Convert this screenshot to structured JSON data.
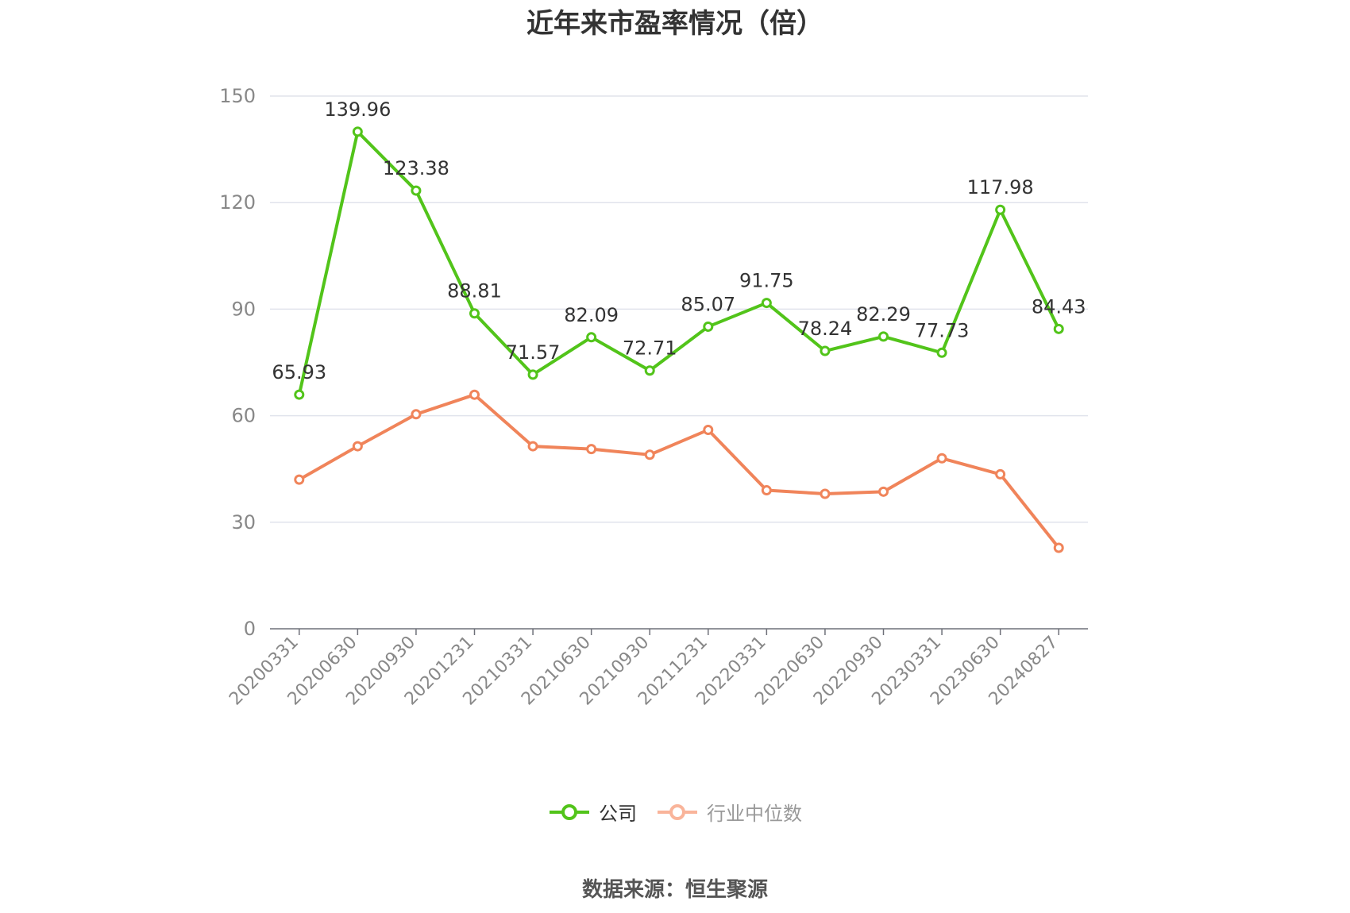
{
  "title": "近年来市盈率情况（倍）",
  "source": "数据来源：恒生聚源",
  "legend": [
    {
      "label": "公司",
      "color": "#52c41a"
    },
    {
      "label": "行业中位数",
      "color": "#fa8c5a"
    }
  ],
  "chart_data": {
    "type": "line",
    "title": "近年来市盈率情况（倍）",
    "xlabel": "",
    "ylabel": "",
    "ylim": [
      0,
      150
    ],
    "yticks": [
      0,
      30,
      60,
      90,
      120,
      150
    ],
    "grid": true,
    "legend_position": "bottom",
    "categories": [
      "20200331",
      "20200630",
      "20200930",
      "20201231",
      "20210331",
      "20210630",
      "20210930",
      "20211231",
      "20220331",
      "20220630",
      "20220930",
      "20230331",
      "20230630",
      "20240827"
    ],
    "series": [
      {
        "name": "公司",
        "color": "#52c41a",
        "show_labels": true,
        "values": [
          65.93,
          139.96,
          123.38,
          88.81,
          71.57,
          82.09,
          72.71,
          85.07,
          91.75,
          78.24,
          82.29,
          77.73,
          117.98,
          84.43
        ]
      },
      {
        "name": "行业中位数",
        "color": "#f0845a",
        "show_labels": false,
        "values": [
          42.0,
          51.4,
          60.4,
          65.9,
          51.4,
          50.6,
          49.0,
          56.0,
          39.0,
          38.0,
          38.6,
          48.0,
          43.5,
          22.8
        ]
      }
    ]
  }
}
